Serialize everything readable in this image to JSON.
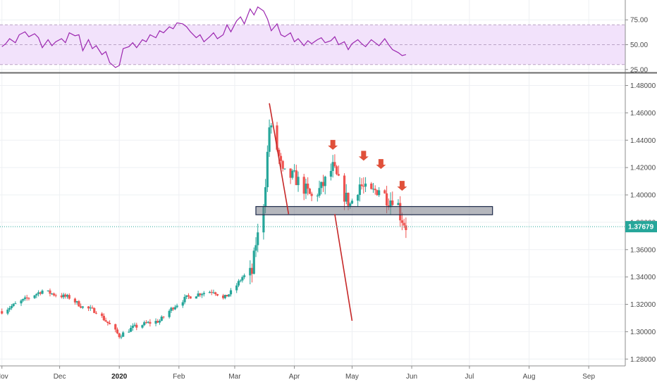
{
  "chart_data": [
    {
      "type": "line",
      "panel": "rsi",
      "ylim": [
        22,
        95
      ],
      "band": [
        30,
        70
      ],
      "band_color": "#f2e2fb",
      "line_color": "#9c27b0",
      "yticks": [
        "75.00",
        "50.00",
        "25.00"
      ],
      "ytick_values": [
        75,
        50,
        25
      ],
      "x": [
        "2019-11-01",
        "2019-11-03",
        "2019-11-05",
        "2019-11-08",
        "2019-11-10",
        "2019-11-13",
        "2019-11-15",
        "2019-11-18",
        "2019-11-20",
        "2019-11-22",
        "2019-11-25",
        "2019-11-27",
        "2019-11-29",
        "2019-12-02",
        "2019-12-04",
        "2019-12-06",
        "2019-12-09",
        "2019-12-11",
        "2019-12-13",
        "2019-12-16",
        "2019-12-18",
        "2019-12-20",
        "2019-12-23",
        "2019-12-25",
        "2019-12-27",
        "2019-12-30",
        "2020-01-01",
        "2020-01-03",
        "2020-01-06",
        "2020-01-08",
        "2020-01-10",
        "2020-01-13",
        "2020-01-15",
        "2020-01-17",
        "2020-01-20",
        "2020-01-22",
        "2020-01-24",
        "2020-01-27",
        "2020-01-29",
        "2020-01-31",
        "2020-02-03",
        "2020-02-05",
        "2020-02-07",
        "2020-02-10",
        "2020-02-12",
        "2020-02-14",
        "2020-02-17",
        "2020-02-19",
        "2020-02-21",
        "2020-02-24",
        "2020-02-26",
        "2020-02-28",
        "2020-03-02",
        "2020-03-04",
        "2020-03-06",
        "2020-03-09",
        "2020-03-11",
        "2020-03-13",
        "2020-03-16",
        "2020-03-18",
        "2020-03-20",
        "2020-03-23",
        "2020-03-25",
        "2020-03-27",
        "2020-03-30",
        "2020-04-01",
        "2020-04-03",
        "2020-04-06",
        "2020-04-08",
        "2020-04-10",
        "2020-04-13",
        "2020-04-15",
        "2020-04-17",
        "2020-04-20",
        "2020-04-22",
        "2020-04-24",
        "2020-04-27",
        "2020-04-29",
        "2020-05-01",
        "2020-05-04",
        "2020-05-06",
        "2020-05-08",
        "2020-05-11",
        "2020-05-13",
        "2020-05-15",
        "2020-05-18",
        "2020-05-20",
        "2020-05-22",
        "2020-05-25",
        "2020-05-27",
        "2020-05-29"
      ],
      "values": [
        48,
        51,
        56,
        52,
        60,
        63,
        58,
        61,
        57,
        47,
        55,
        49,
        53,
        56,
        52,
        62,
        59,
        60,
        44,
        55,
        46,
        49,
        40,
        43,
        32,
        27,
        29,
        46,
        48,
        52,
        47,
        55,
        53,
        60,
        57,
        64,
        62,
        68,
        66,
        72,
        71,
        68,
        63,
        57,
        60,
        53,
        58,
        62,
        56,
        60,
        70,
        63,
        74,
        78,
        71,
        86,
        80,
        88,
        84,
        76,
        64,
        71,
        60,
        58,
        62,
        53,
        56,
        49,
        54,
        51,
        55,
        57,
        52,
        54,
        58,
        50,
        53,
        45,
        51,
        55,
        51,
        48,
        55,
        52,
        49,
        56,
        50,
        45,
        42,
        39,
        40
      ]
    },
    {
      "type": "candlestick",
      "panel": "price",
      "ylim": [
        1.275,
        1.489
      ],
      "yticks": [
        "1.48000",
        "1.46000",
        "1.44000",
        "1.42000",
        "1.40000",
        "1.38000",
        "1.36000",
        "1.34000",
        "1.32000",
        "1.30000",
        "1.28000"
      ],
      "ytick_values": [
        1.48,
        1.46,
        1.44,
        1.42,
        1.4,
        1.38,
        1.36,
        1.34,
        1.32,
        1.3,
        1.28
      ],
      "x_start": "2019-10-31",
      "x_end": "2020-09-20",
      "x_ticks": [
        {
          "label": "Nov",
          "date": "2019-11-01",
          "bold": false
        },
        {
          "label": "Dec",
          "date": "2019-12-01",
          "bold": false
        },
        {
          "label": "2020",
          "date": "2020-01-01",
          "bold": true
        },
        {
          "label": "Feb",
          "date": "2020-02-01",
          "bold": false
        },
        {
          "label": "Mar",
          "date": "2020-03-01",
          "bold": false
        },
        {
          "label": "Apr",
          "date": "2020-04-01",
          "bold": false
        },
        {
          "label": "May",
          "date": "2020-05-01",
          "bold": false
        },
        {
          "label": "Jun",
          "date": "2020-06-01",
          "bold": false
        },
        {
          "label": "Jul",
          "date": "2020-07-01",
          "bold": false
        },
        {
          "label": "Aug",
          "date": "2020-08-01",
          "bold": false
        },
        {
          "label": "Sep",
          "date": "2020-09-01",
          "bold": false
        }
      ],
      "last_price": "1.37679",
      "last_price_value": 1.37679,
      "up_color": "#26a69a",
      "down_color": "#ef5350",
      "close_anchors": [
        [
          "2019-11-01",
          1.315
        ],
        [
          "2019-11-08",
          1.32
        ],
        [
          "2019-11-15",
          1.325
        ],
        [
          "2019-11-22",
          1.33
        ],
        [
          "2019-11-29",
          1.327
        ],
        [
          "2019-12-06",
          1.325
        ],
        [
          "2019-12-13",
          1.318
        ],
        [
          "2019-12-20",
          1.315
        ],
        [
          "2019-12-27",
          1.305
        ],
        [
          "2020-01-01",
          1.297
        ],
        [
          "2020-01-08",
          1.303
        ],
        [
          "2020-01-15",
          1.306
        ],
        [
          "2020-01-22",
          1.308
        ],
        [
          "2020-01-29",
          1.318
        ],
        [
          "2020-02-05",
          1.325
        ],
        [
          "2020-02-12",
          1.328
        ],
        [
          "2020-02-19",
          1.33
        ],
        [
          "2020-02-24",
          1.324
        ],
        [
          "2020-02-29",
          1.33
        ],
        [
          "2020-03-05",
          1.34
        ],
        [
          "2020-03-10",
          1.343
        ],
        [
          "2020-03-12",
          1.365
        ],
        [
          "2020-03-15",
          1.38
        ],
        [
          "2020-03-17",
          1.41
        ],
        [
          "2020-03-19",
          1.45
        ],
        [
          "2020-03-22",
          1.44
        ],
        [
          "2020-03-26",
          1.415
        ],
        [
          "2020-04-01",
          1.413
        ],
        [
          "2020-04-06",
          1.405
        ],
        [
          "2020-04-10",
          1.398
        ],
        [
          "2020-04-15",
          1.405
        ],
        [
          "2020-04-21",
          1.42
        ],
        [
          "2020-04-26",
          1.402
        ],
        [
          "2020-04-30",
          1.393
        ],
        [
          "2020-05-05",
          1.408
        ],
        [
          "2020-05-10",
          1.4
        ],
        [
          "2020-05-15",
          1.405
        ],
        [
          "2020-05-20",
          1.396
        ],
        [
          "2020-05-24",
          1.4
        ],
        [
          "2020-05-26",
          1.385
        ],
        [
          "2020-05-29",
          1.377
        ]
      ],
      "support_zone": {
        "from": "2020-03-12",
        "to": "2020-07-13",
        "low": 1.3855,
        "high": 1.3915
      },
      "trend_lines": [
        {
          "from": [
            "2020-03-19",
            1.467
          ],
          "to": [
            "2020-03-29",
            1.386
          ]
        },
        {
          "from": [
            "2020-04-22",
            1.386
          ],
          "to": [
            "2020-05-01",
            1.308
          ]
        }
      ],
      "arrows": [
        {
          "date": "2020-04-21",
          "price": 1.433
        },
        {
          "date": "2020-05-07",
          "price": 1.425
        },
        {
          "date": "2020-05-16",
          "price": 1.419
        },
        {
          "date": "2020-05-27",
          "price": 1.403
        }
      ],
      "arrow_color": "#e0503a"
    }
  ]
}
